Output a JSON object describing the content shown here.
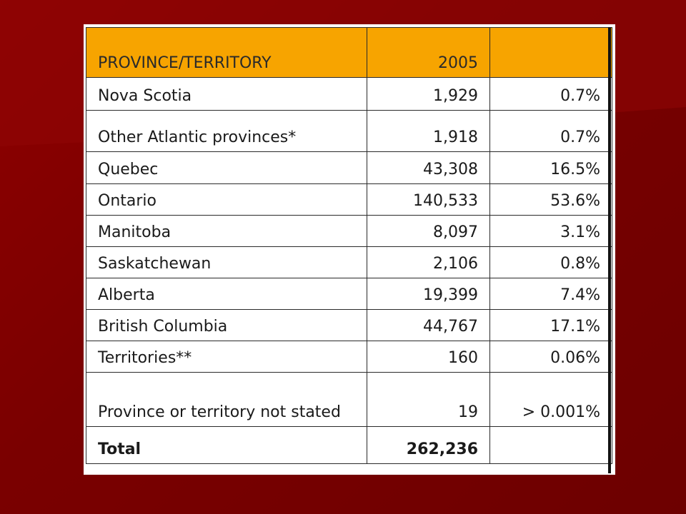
{
  "table": {
    "headers": [
      "PROVINCE/TERRITORY",
      "2005",
      ""
    ],
    "rows": [
      {
        "region": "Nova Scotia",
        "count": "1,929",
        "percent": "0.7%"
      },
      {
        "region": "Other Atlantic provinces*",
        "count": "1,918",
        "percent": "0.7%"
      },
      {
        "region": "Quebec",
        "count": "43,308",
        "percent": "16.5%"
      },
      {
        "region": "Ontario",
        "count": "140,533",
        "percent": "53.6%"
      },
      {
        "region": "Manitoba",
        "count": "8,097",
        "percent": "3.1%"
      },
      {
        "region": "Saskatchewan",
        "count": "2,106",
        "percent": "0.8%"
      },
      {
        "region": "Alberta",
        "count": "19,399",
        "percent": "7.4%"
      },
      {
        "region": "British Columbia",
        "count": "44,767",
        "percent": "17.1%"
      },
      {
        "region": "Territories**",
        "count": "160",
        "percent": "0.06%"
      },
      {
        "region": "Province or territory not stated",
        "count": "19",
        "percent": "> 0.001%"
      }
    ],
    "total": {
      "label": "Total",
      "count": "262,236",
      "percent": ""
    }
  },
  "colors": {
    "background": "#7a0000",
    "header_fill": "#f7a400",
    "table_border": "#2a2a2a"
  }
}
